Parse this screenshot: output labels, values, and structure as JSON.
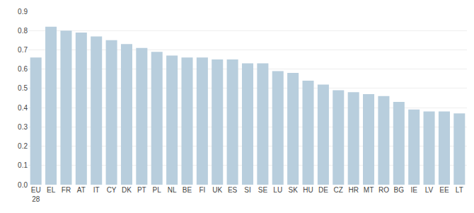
{
  "chart_data": {
    "type": "bar",
    "categories": [
      "EU\n28",
      "EL",
      "FR",
      "AT",
      "IT",
      "CY",
      "DK",
      "PT",
      "PL",
      "NL",
      "BE",
      "FI",
      "UK",
      "ES",
      "SI",
      "SE",
      "LU",
      "SK",
      "HU",
      "DE",
      "CZ",
      "HR",
      "MT",
      "RO",
      "BG",
      "IE",
      "LV",
      "EE",
      "LT"
    ],
    "values": [
      0.66,
      0.82,
      0.8,
      0.79,
      0.77,
      0.75,
      0.73,
      0.71,
      0.69,
      0.67,
      0.66,
      0.66,
      0.65,
      0.65,
      0.63,
      0.63,
      0.59,
      0.58,
      0.54,
      0.52,
      0.49,
      0.48,
      0.47,
      0.46,
      0.43,
      0.39,
      0.38,
      0.38,
      0.37
    ],
    "color": "#b8cedd",
    "ylim": [
      0,
      0.9
    ],
    "yticks": [
      {
        "value": 0,
        "label": "0.0"
      },
      0.1,
      0.2,
      0.3,
      0.4,
      0.5,
      0.6,
      0.7,
      0.8,
      0.9
    ],
    "grid": true
  }
}
